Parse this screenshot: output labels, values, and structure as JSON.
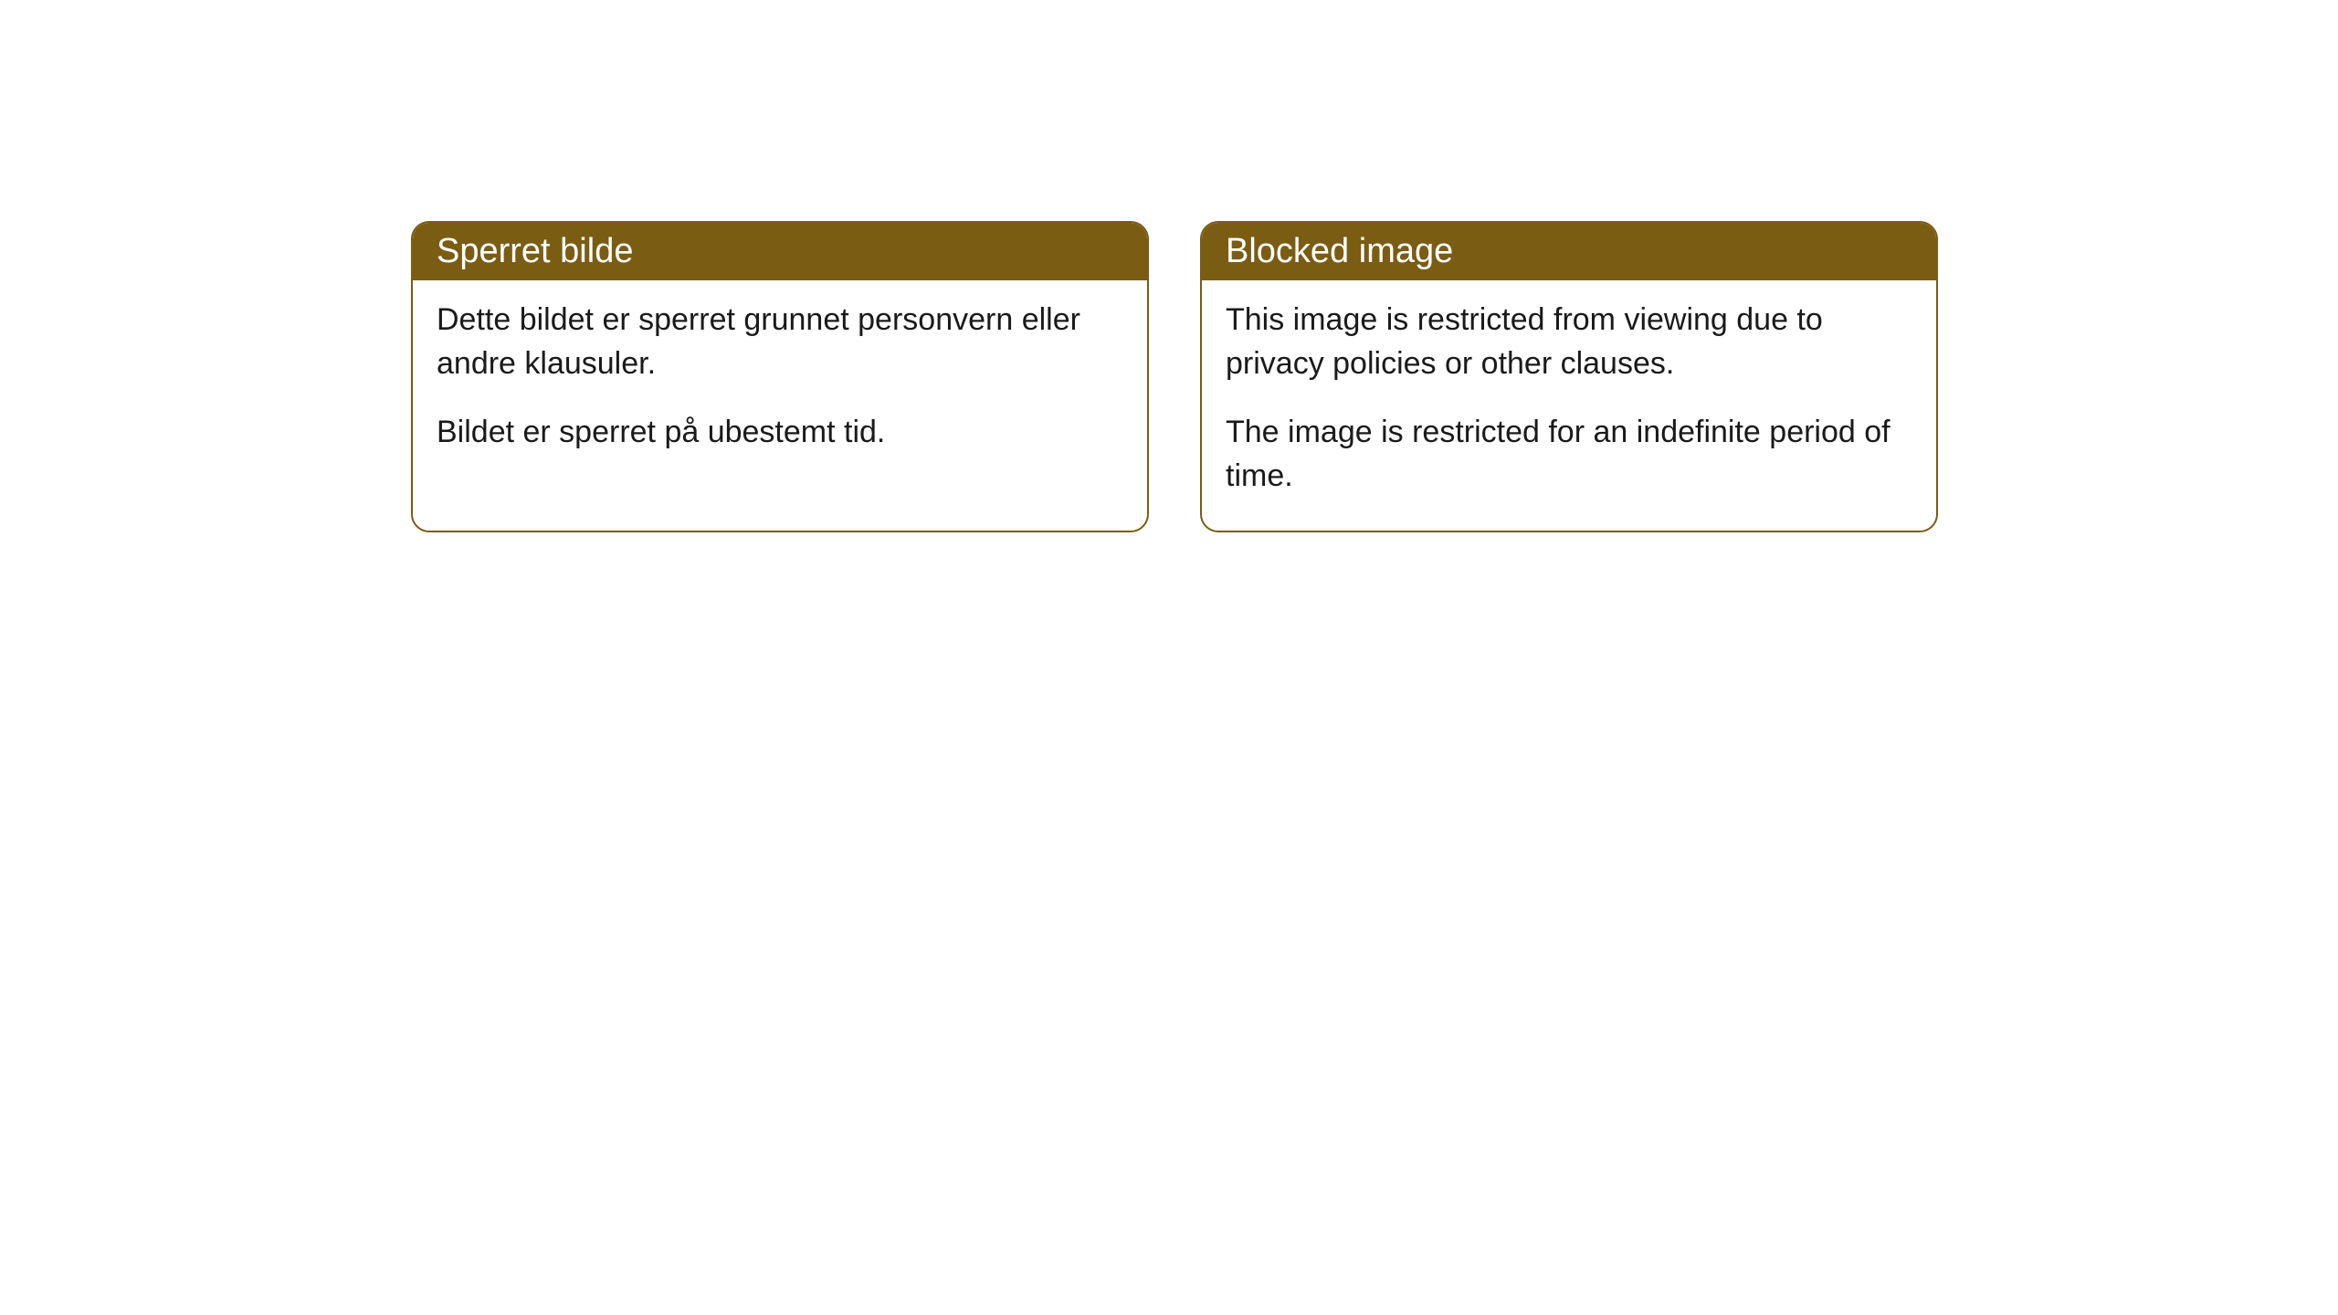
{
  "cards": [
    {
      "title": "Sperret bilde",
      "paragraph1": "Dette bildet er sperret grunnet personvern eller andre klausuler.",
      "paragraph2": "Bildet er sperret på ubestemt tid."
    },
    {
      "title": "Blocked image",
      "paragraph1": "This image is restricted from viewing due to privacy policies or other clauses.",
      "paragraph2": "The image is restricted for an indefinite period of time."
    }
  ],
  "styling": {
    "header_bg_color": "#7a5c13",
    "header_text_color": "#ffffff",
    "border_color": "#7a5c13",
    "body_text_color": "#1a1a1a",
    "border_radius": 20,
    "header_fontsize": 38,
    "body_fontsize": 34
  }
}
